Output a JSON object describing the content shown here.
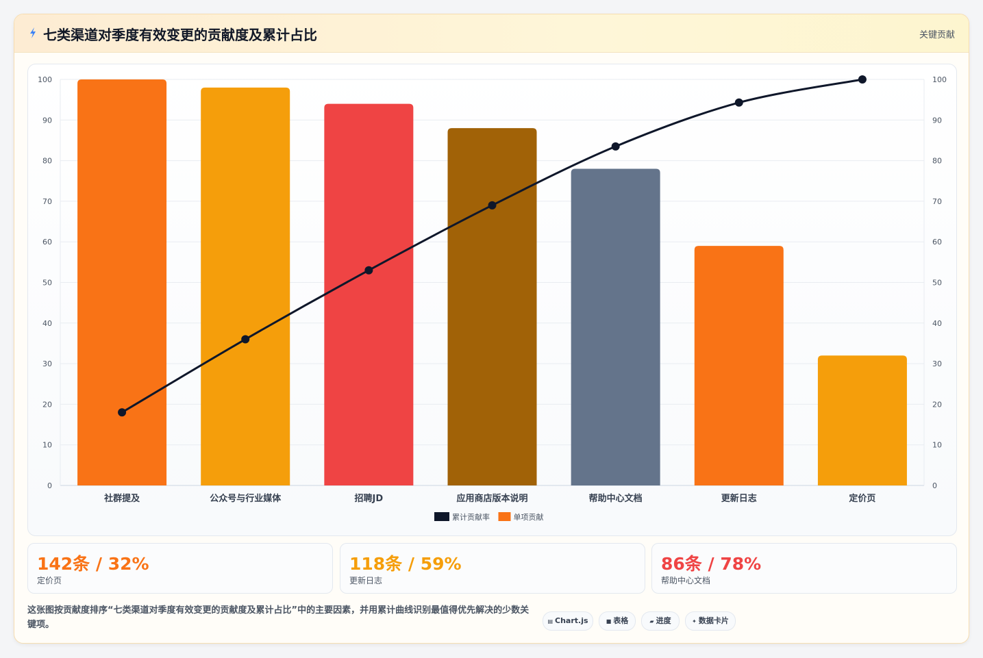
{
  "header": {
    "title": "七类渠道对季度有效变更的贡献度及累计占比",
    "badge": "关键贡献"
  },
  "chart_data": {
    "type": "bar",
    "categories": [
      "社群提及",
      "公众号与行业媒体",
      "招聘JD",
      "应用商店版本说明",
      "帮助中心文档",
      "更新日志",
      "定价页"
    ],
    "series": [
      {
        "name": "单项贡献",
        "type": "bar",
        "values": [
          100,
          98,
          94,
          88,
          78,
          59,
          32
        ],
        "colors": [
          "#f97316",
          "#f59e0b",
          "#ef4444",
          "#a16207",
          "#64748b",
          "#f97316",
          "#f59e0b"
        ]
      },
      {
        "name": "累计贡献率",
        "type": "line",
        "values": [
          18,
          36,
          53,
          69,
          83.5,
          94.3,
          100
        ],
        "color": "#0f172a"
      }
    ],
    "ylim": [
      0,
      100
    ],
    "y2lim": [
      0,
      100
    ],
    "yticks": [
      0,
      10,
      20,
      30,
      40,
      50,
      60,
      70,
      80,
      90,
      100
    ],
    "grid": true,
    "legend_position": "bottom",
    "legend_order": [
      "累计贡献率",
      "单项贡献"
    ]
  },
  "kpis": [
    {
      "value": "142条 / 32%",
      "label": "定价页",
      "color": "#f97316"
    },
    {
      "value": "118条 / 59%",
      "label": "更新日志",
      "color": "#f59e0b"
    },
    {
      "value": "86条 / 78%",
      "label": "帮助中心文档",
      "color": "#ef4444"
    }
  ],
  "footer": {
    "description": "这张图按贡献度排序“七类渠道对季度有效变更的贡献度及累计占比”中的主要因素，并用累计曲线识别最值得优先解决的少数关键项。",
    "chips": [
      {
        "icon": "▤",
        "label": "Chart.js"
      },
      {
        "icon": "■",
        "label": "表格"
      },
      {
        "icon": "▰",
        "label": "进度"
      },
      {
        "icon": "✦",
        "label": "数据卡片"
      }
    ]
  }
}
